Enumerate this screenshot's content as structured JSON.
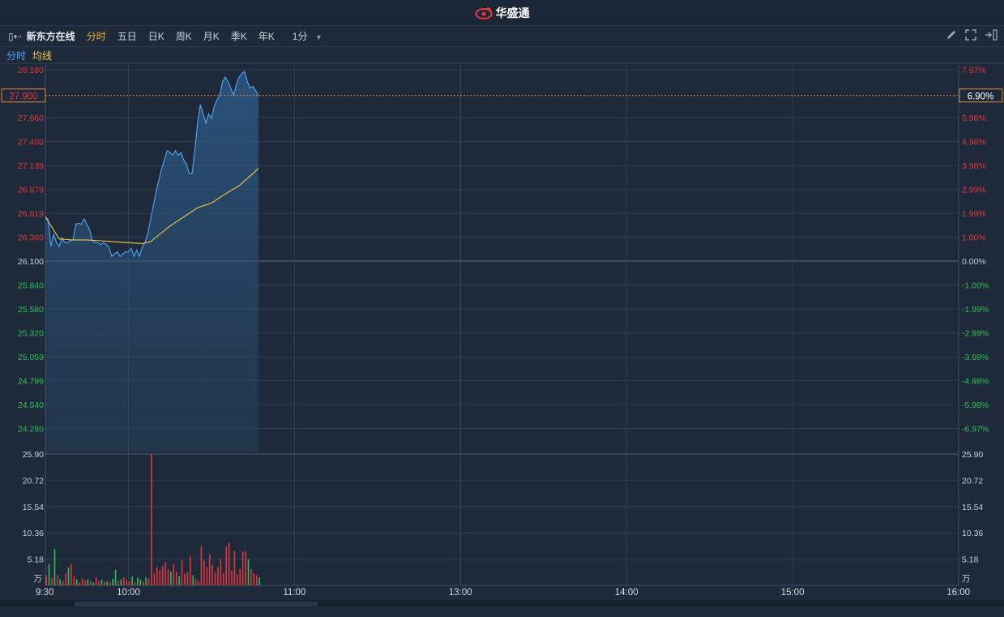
{
  "app": {
    "brand": "华盛通"
  },
  "toolbar": {
    "stock_name": "新东方在线",
    "periods": [
      "分时",
      "五日",
      "日K",
      "周K",
      "月K",
      "季K",
      "年K"
    ],
    "active_period": "分时",
    "interval": "1分"
  },
  "legend": {
    "price_label": "分时",
    "avg_label": "均线",
    "price_color": "#4fa6ff",
    "avg_color": "#f0c84a"
  },
  "colors": {
    "up": "#e0363d",
    "down": "#2fbf55",
    "neutral": "#c8d0da",
    "background": "#1e2a3a",
    "grid": "#2f3e52"
  },
  "chart_data": [
    {
      "type": "line",
      "title": "",
      "prev_close": 26.1,
      "current_price": "27.900",
      "current_change": "6.90%",
      "y_ticks_left": [
        "28.180",
        "27.660",
        "27.400",
        "27.139",
        "26.879",
        "26.619",
        "26.360",
        "26.100",
        "25.840",
        "25.580",
        "25.320",
        "25.059",
        "24.799",
        "24.540",
        "24.280"
      ],
      "y_ticks_right": [
        "7.97%",
        "5.98%",
        "4.98%",
        "3.98%",
        "2.99%",
        "1.99%",
        "1.00%",
        "0.00%",
        "-1.00%",
        "-1.99%",
        "-2.99%",
        "-3.98%",
        "-4.98%",
        "-5.98%",
        "-6.97%"
      ],
      "ylim": [
        24.02,
        28.18
      ],
      "x_ticks": [
        "9:30",
        "10:00",
        "11:00",
        "13:00",
        "14:00",
        "15:00",
        "16:00"
      ],
      "series": [
        {
          "name": "分时",
          "x_minutes": [
            0,
            1,
            2,
            3,
            4,
            5,
            6,
            7,
            8,
            9,
            10,
            11,
            12,
            13,
            14,
            15,
            16,
            17,
            18,
            19,
            20,
            21,
            22,
            23,
            24,
            25,
            26,
            27,
            28,
            29,
            30,
            31,
            32,
            33,
            34,
            35,
            36,
            37,
            38,
            39,
            40,
            41,
            42,
            43,
            44,
            45,
            46,
            47,
            48,
            49,
            50,
            51,
            52,
            53,
            54,
            55,
            56,
            57,
            58,
            59,
            60,
            61,
            62,
            63,
            64,
            65,
            66,
            67,
            68,
            69,
            70,
            71,
            72,
            73,
            74,
            75,
            76,
            77
          ],
          "values": [
            26.58,
            26.55,
            26.26,
            26.39,
            26.3,
            26.26,
            26.35,
            26.3,
            26.3,
            26.32,
            26.33,
            26.5,
            26.51,
            26.5,
            26.56,
            26.5,
            26.44,
            26.32,
            26.3,
            26.3,
            26.28,
            26.3,
            26.28,
            26.25,
            26.15,
            26.18,
            26.2,
            26.15,
            26.18,
            26.2,
            26.2,
            26.24,
            26.15,
            26.22,
            26.15,
            26.25,
            26.3,
            26.4,
            26.55,
            26.7,
            26.85,
            26.98,
            27.1,
            27.2,
            27.3,
            27.28,
            27.25,
            27.3,
            27.25,
            27.28,
            27.2,
            27.15,
            27.05,
            27.05,
            27.3,
            27.6,
            27.8,
            27.7,
            27.6,
            27.7,
            27.65,
            27.78,
            27.85,
            27.9,
            28.05,
            28.1,
            28.05,
            27.98,
            27.9,
            28.02,
            28.1,
            28.14,
            28.16,
            28.05,
            27.98,
            28.0,
            27.95,
            27.9
          ],
          "color": "#4fa6ff"
        },
        {
          "name": "均线",
          "x_minutes": [
            0,
            5,
            10,
            15,
            20,
            25,
            30,
            35,
            38,
            40,
            45,
            50,
            55,
            60,
            65,
            70,
            75,
            77
          ],
          "values": [
            26.58,
            26.34,
            26.33,
            26.33,
            26.32,
            26.31,
            26.3,
            26.29,
            26.31,
            26.36,
            26.48,
            26.58,
            26.68,
            26.73,
            26.83,
            26.92,
            27.05,
            27.11
          ],
          "color": "#f0c84a"
        }
      ]
    },
    {
      "type": "bar",
      "title": "",
      "unit": "万",
      "y_ticks": [
        "25.90",
        "20.72",
        "15.54",
        "10.36",
        "5.18"
      ],
      "ylim": [
        0,
        25.9
      ],
      "x_minutes": [
        0,
        1,
        2,
        3,
        4,
        5,
        6,
        7,
        8,
        9,
        10,
        11,
        12,
        13,
        14,
        15,
        16,
        17,
        18,
        19,
        20,
        21,
        22,
        23,
        24,
        25,
        26,
        27,
        28,
        29,
        30,
        31,
        32,
        33,
        34,
        35,
        36,
        37,
        38,
        39,
        40,
        41,
        42,
        43,
        44,
        45,
        46,
        47,
        48,
        49,
        50,
        51,
        52,
        53,
        54,
        55,
        56,
        57,
        58,
        59,
        60,
        61,
        62,
        63,
        64,
        65,
        66,
        67,
        68,
        69,
        70,
        71,
        72,
        73,
        74,
        75,
        76,
        77
      ],
      "values": [
        2.0,
        4.2,
        1.5,
        7.2,
        2.0,
        1.2,
        0.8,
        2.3,
        3.5,
        4.2,
        1.8,
        1.2,
        0.6,
        1.4,
        1.0,
        1.2,
        0.9,
        0.6,
        1.6,
        0.8,
        1.1,
        0.7,
        0.8,
        0.6,
        1.3,
        3.1,
        0.9,
        1.2,
        1.6,
        1.1,
        0.8,
        1.8,
        0.6,
        1.5,
        1.2,
        0.8,
        1.6,
        1.3,
        25.9,
        2.4,
        3.6,
        3.0,
        3.8,
        4.6,
        3.2,
        2.8,
        4.2,
        2.7,
        1.8,
        4.9,
        2.3,
        2.6,
        5.8,
        2.0,
        1.3,
        0.9,
        7.8,
        5.0,
        3.6,
        6.1,
        4.1,
        2.5,
        3.6,
        5.2,
        2.4,
        7.6,
        8.4,
        3.0,
        6.8,
        2.1,
        3.2,
        6.6,
        6.8,
        5.2,
        3.2,
        2.4,
        2.0,
        1.6
      ],
      "direction": [
        "up",
        "down",
        "up",
        "down",
        "up",
        "down",
        "up",
        "up",
        "down",
        "up",
        "up",
        "down",
        "up",
        "up",
        "up",
        "down",
        "up",
        "down",
        "up",
        "up",
        "down",
        "up",
        "down",
        "up",
        "down",
        "down",
        "up",
        "down",
        "up",
        "up",
        "up",
        "down",
        "up",
        "down",
        "down",
        "up",
        "down",
        "up",
        "up",
        "up",
        "up",
        "up",
        "up",
        "up",
        "up",
        "down",
        "up",
        "up",
        "down",
        "up",
        "up",
        "up",
        "up",
        "down",
        "up",
        "up",
        "up",
        "up",
        "up",
        "up",
        "up",
        "up",
        "up",
        "up",
        "up",
        "up",
        "up",
        "up",
        "up",
        "up",
        "up",
        "up",
        "up",
        "down",
        "up",
        "up",
        "up",
        "down"
      ]
    }
  ]
}
